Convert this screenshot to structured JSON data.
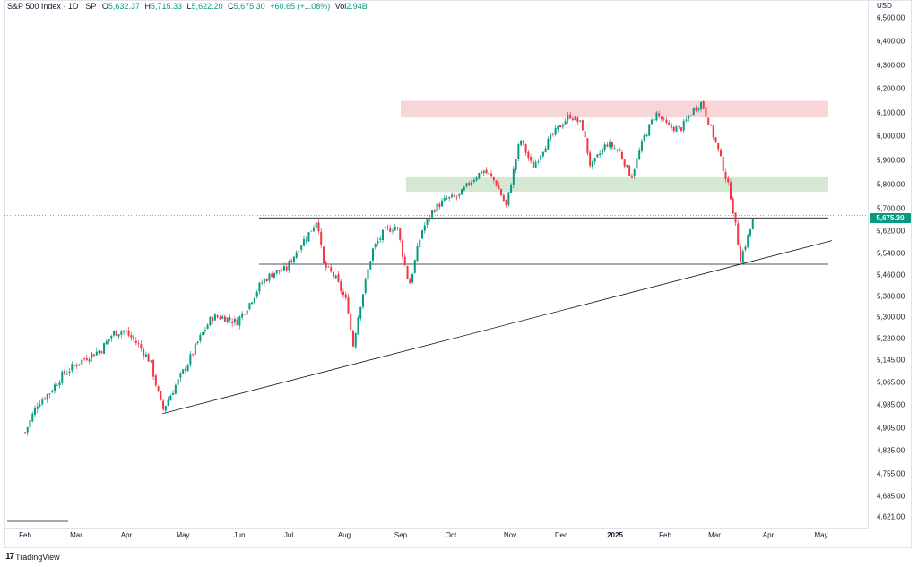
{
  "legend": {
    "symbol": "S&P 500 Index · 1D · SP",
    "open_label": "O",
    "open": "5,632.37",
    "high_label": "H",
    "high": "5,715.33",
    "low_label": "L",
    "low": "5,622.20",
    "close_label": "C",
    "close": "5,675.30",
    "change": "+60.65 (+1.08%)",
    "vol_label": "Vol",
    "vol": "2.94B"
  },
  "currency": "USD",
  "last_price": "5,675.30",
  "brand": {
    "logo": "17",
    "name": "TradingView"
  },
  "colors": {
    "up": "#089981",
    "down": "#f23645",
    "resistance": "#f8d6d8",
    "support": "#d5e8d4",
    "line": "#131722"
  },
  "chart_data": {
    "type": "candlestick",
    "symbol": "S&P 500 Index",
    "interval": "1D",
    "y_ticks": [
      "6,500.00",
      "6,400.00",
      "6,300.00",
      "6,200.00",
      "6,100.00",
      "6,000.00",
      "5,900.00",
      "5,800.00",
      "5,700.00",
      "5,620.00",
      "5,540.00",
      "5,460.00",
      "5,380.00",
      "5,300.00",
      "5,220.00",
      "5,145.00",
      "5,065.00",
      "4,985.00",
      "4,905.00",
      "4,825.00",
      "4,755.00",
      "4,685.00",
      "4,621.00"
    ],
    "x_ticks": [
      "Feb",
      "Mar",
      "Apr",
      "May",
      "Jun",
      "Jul",
      "Aug",
      "Sep",
      "Oct",
      "Nov",
      "Dec",
      "2025",
      "Feb",
      "Mar",
      "Apr",
      "May"
    ],
    "close_path": [
      [
        "2024-02-01",
        4890
      ],
      [
        "2024-02-08",
        4990
      ],
      [
        "2024-02-15",
        5030
      ],
      [
        "2024-02-22",
        5090
      ],
      [
        "2024-03-01",
        5130
      ],
      [
        "2024-03-08",
        5160
      ],
      [
        "2024-03-15",
        5180
      ],
      [
        "2024-03-22",
        5240
      ],
      [
        "2024-03-28",
        5250
      ],
      [
        "2024-04-05",
        5200
      ],
      [
        "2024-04-12",
        5140
      ],
      [
        "2024-04-19",
        4965
      ],
      [
        "2024-04-26",
        5050
      ],
      [
        "2024-05-03",
        5130
      ],
      [
        "2024-05-10",
        5220
      ],
      [
        "2024-05-17",
        5300
      ],
      [
        "2024-05-24",
        5300
      ],
      [
        "2024-05-31",
        5280
      ],
      [
        "2024-06-07",
        5350
      ],
      [
        "2024-06-14",
        5430
      ],
      [
        "2024-06-21",
        5470
      ],
      [
        "2024-06-28",
        5480
      ],
      [
        "2024-07-05",
        5560
      ],
      [
        "2024-07-12",
        5620
      ],
      [
        "2024-07-16",
        5667
      ],
      [
        "2024-07-19",
        5500
      ],
      [
        "2024-07-26",
        5450
      ],
      [
        "2024-08-02",
        5350
      ],
      [
        "2024-08-05",
        5190
      ],
      [
        "2024-08-09",
        5340
      ],
      [
        "2024-08-16",
        5550
      ],
      [
        "2024-08-23",
        5620
      ],
      [
        "2024-08-30",
        5640
      ],
      [
        "2024-09-06",
        5420
      ],
      [
        "2024-09-13",
        5620
      ],
      [
        "2024-09-20",
        5700
      ],
      [
        "2024-09-27",
        5740
      ],
      [
        "2024-10-04",
        5750
      ],
      [
        "2024-10-11",
        5815
      ],
      [
        "2024-10-18",
        5860
      ],
      [
        "2024-10-25",
        5810
      ],
      [
        "2024-10-31",
        5710
      ],
      [
        "2024-11-08",
        5990
      ],
      [
        "2024-11-15",
        5870
      ],
      [
        "2024-11-22",
        5960
      ],
      [
        "2024-11-29",
        6030
      ],
      [
        "2024-12-06",
        6090
      ],
      [
        "2024-12-13",
        6050
      ],
      [
        "2024-12-18",
        5870
      ],
      [
        "2024-12-27",
        5970
      ],
      [
        "2025-01-03",
        5940
      ],
      [
        "2025-01-10",
        5830
      ],
      [
        "2025-01-17",
        5990
      ],
      [
        "2025-01-24",
        6100
      ],
      [
        "2025-01-31",
        6040
      ],
      [
        "2025-02-07",
        6030
      ],
      [
        "2025-02-14",
        6110
      ],
      [
        "2025-02-19",
        6144
      ],
      [
        "2025-02-28",
        5950
      ],
      [
        "2025-03-07",
        5770
      ],
      [
        "2025-03-13",
        5520
      ],
      [
        "2025-03-18",
        5615
      ],
      [
        "2025-03-21",
        5675
      ]
    ],
    "resistance_zone": [
      6080,
      6150
    ],
    "support_zone": [
      5770,
      5830
    ],
    "horizontal_levels": [
      5667,
      5500
    ],
    "trendline": [
      [
        "2024-04-19",
        4955
      ],
      [
        "2024-08-05",
        5120
      ],
      [
        "2025-03-13",
        5500
      ]
    ],
    "last_close": 5675.3
  }
}
